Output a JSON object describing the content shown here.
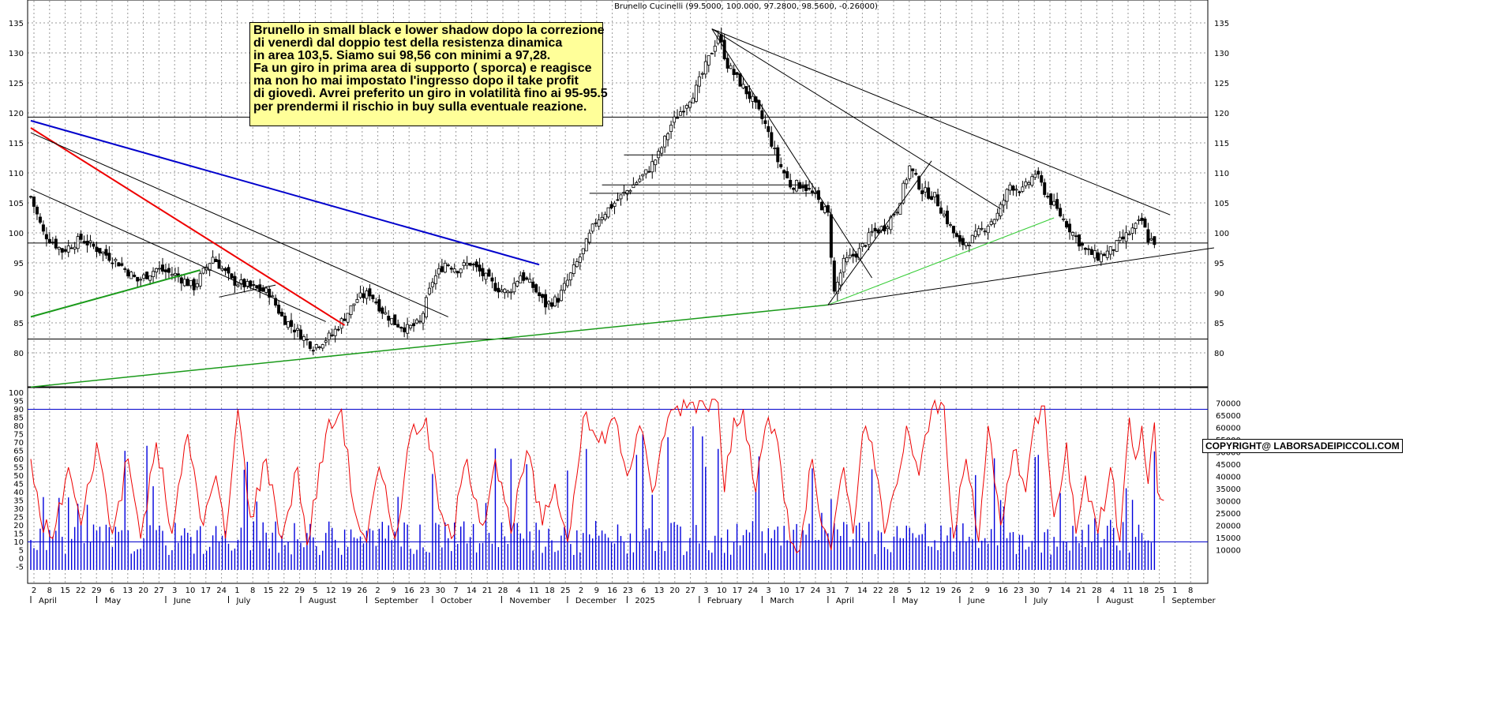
{
  "header": {
    "title": "Brunello Cucinelli (99.5000, 100.000, 97.2800, 98.5600, -0.26000)"
  },
  "note": {
    "lines": [
      "Brunello in small black e lower shadow dopo la correzione",
      "di venerdì dal doppio test della resistenza dinamica",
      "in area 103,5. Siamo sui 98,56 con minimi a 97,28.",
      "Fa un giro in prima area di supporto ( sporca) e reagisce",
      "ma non ho  mai impostato l'ingresso dopo il take profit",
      "di giovedì. Avrei preferito un giro in volatilità fino ai 95-95.5",
      "per prendermi il rischio in buy sulla eventuale reazione."
    ]
  },
  "copyright": "COPYRIGHT@ LABORSADEIPICCOLI.COM",
  "colors": {
    "grid": "#9a9a9a",
    "candle": "#000000",
    "blue_trend": "#0000cc",
    "red_trend": "#ee0000",
    "green_trend": "#1a9a1a",
    "light_green": "#33cc33",
    "oscillator": "#ee0000",
    "volume": "#0000dd",
    "level_line": "#0000cc",
    "note_bg": "#ffff99"
  },
  "chart_data": [
    {
      "type": "candlestick",
      "name": "Brunello Cucinelli",
      "ylim": [
        75,
        138
      ],
      "y_ticks": [
        80,
        85,
        90,
        95,
        100,
        105,
        110,
        115,
        120,
        125,
        130,
        135
      ],
      "y_tick_labels_right": [
        "80",
        "85",
        "90",
        "95",
        "100",
        "105",
        "110",
        "115",
        "120",
        "125",
        "130",
        "135"
      ],
      "x_range_bars": [
        0,
        374
      ],
      "day_ticks": [
        "2",
        "8",
        "15",
        "22",
        "29",
        "6",
        "13",
        "20",
        "27",
        "3",
        "10",
        "17",
        "24",
        "1",
        "8",
        "15",
        "22",
        "29",
        "5",
        "12",
        "19",
        "26",
        "2",
        "9",
        "16",
        "23",
        "30",
        "7",
        "14",
        "21",
        "28",
        "4",
        "11",
        "18",
        "25",
        "2",
        "9",
        "16",
        "23",
        "6",
        "13",
        "20",
        "27",
        "3",
        "10",
        "17",
        "24",
        "3",
        "10",
        "17",
        "24",
        "31",
        "7",
        "14",
        "22",
        "28",
        "5",
        "12",
        "19",
        "26",
        "2",
        "9",
        "16",
        "23",
        "30",
        "7",
        "14",
        "21",
        "28",
        "4",
        "11",
        "18",
        "25",
        "1",
        "8"
      ],
      "months": [
        {
          "label": "April",
          "bar": 0
        },
        {
          "label": "May",
          "bar": 21
        },
        {
          "label": "June",
          "bar": 43
        },
        {
          "label": "July",
          "bar": 63
        },
        {
          "label": "August",
          "bar": 86
        },
        {
          "label": "September",
          "bar": 107
        },
        {
          "label": "October",
          "bar": 128
        },
        {
          "label": "November",
          "bar": 150
        },
        {
          "label": "December",
          "bar": 171
        },
        {
          "label": "2025",
          "bar": 190
        },
        {
          "label": "February",
          "bar": 213
        },
        {
          "label": "March",
          "bar": 233
        },
        {
          "label": "April",
          "bar": 254
        },
        {
          "label": "May",
          "bar": 275
        },
        {
          "label": "June",
          "bar": 296
        },
        {
          "label": "July",
          "bar": 317
        },
        {
          "label": "August",
          "bar": 340
        },
        {
          "label": "September",
          "bar": 361
        }
      ],
      "close_anchors": [
        [
          0,
          106
        ],
        [
          4,
          100
        ],
        [
          10,
          97
        ],
        [
          16,
          99
        ],
        [
          22,
          97
        ],
        [
          28,
          95
        ],
        [
          34,
          92
        ],
        [
          40,
          94
        ],
        [
          46,
          93
        ],
        [
          52,
          91
        ],
        [
          58,
          96
        ],
        [
          64,
          92
        ],
        [
          70,
          91
        ],
        [
          76,
          90
        ],
        [
          80,
          86
        ],
        [
          84,
          84
        ],
        [
          90,
          81
        ],
        [
          96,
          83
        ],
        [
          100,
          86
        ],
        [
          104,
          89
        ],
        [
          108,
          90
        ],
        [
          112,
          87
        ],
        [
          116,
          85
        ],
        [
          120,
          84
        ],
        [
          124,
          85
        ],
        [
          128,
          92
        ],
        [
          132,
          95
        ],
        [
          136,
          94
        ],
        [
          140,
          95
        ],
        [
          144,
          93
        ],
        [
          148,
          91
        ],
        [
          152,
          90
        ],
        [
          156,
          93
        ],
        [
          160,
          91
        ],
        [
          164,
          88
        ],
        [
          168,
          89
        ],
        [
          172,
          93
        ],
        [
          176,
          97
        ],
        [
          180,
          102
        ],
        [
          184,
          104
        ],
        [
          188,
          106
        ],
        [
          192,
          108
        ],
        [
          196,
          110
        ],
        [
          200,
          113
        ],
        [
          204,
          118
        ],
        [
          208,
          121
        ],
        [
          212,
          124
        ],
        [
          216,
          129
        ],
        [
          219,
          133
        ],
        [
          222,
          128
        ],
        [
          226,
          125
        ],
        [
          230,
          122
        ],
        [
          234,
          118
        ],
        [
          238,
          112
        ],
        [
          242,
          108
        ],
        [
          246,
          108
        ],
        [
          250,
          106
        ],
        [
          254,
          103
        ],
        [
          256,
          90
        ],
        [
          259,
          95
        ],
        [
          264,
          97
        ],
        [
          268,
          100
        ],
        [
          272,
          101
        ],
        [
          276,
          104
        ],
        [
          280,
          111
        ],
        [
          284,
          107
        ],
        [
          288,
          106
        ],
        [
          292,
          102
        ],
        [
          296,
          98
        ],
        [
          300,
          99
        ],
        [
          304,
          101
        ],
        [
          308,
          103
        ],
        [
          312,
          108
        ],
        [
          316,
          107
        ],
        [
          320,
          110
        ],
        [
          324,
          106
        ],
        [
          328,
          103
        ],
        [
          332,
          100
        ],
        [
          336,
          97
        ],
        [
          340,
          96
        ],
        [
          344,
          97
        ],
        [
          348,
          99
        ],
        [
          352,
          101
        ],
        [
          354,
          102
        ],
        [
          356,
          99
        ],
        [
          358,
          98.56
        ]
      ],
      "horizontal_levels": [
        119.3,
        98.3,
        82.3
      ],
      "segments": [
        {
          "color": "blue_trend",
          "width": 2,
          "from": [
            0,
            118.7
          ],
          "to": [
            162,
            94.7
          ]
        },
        {
          "color": "red_trend",
          "width": 2,
          "from": [
            0,
            117.5
          ],
          "to": [
            100,
            84.6
          ]
        },
        {
          "color": "green_trend",
          "width": 2,
          "from": [
            0,
            86
          ],
          "to": [
            54,
            93.8
          ]
        },
        {
          "color": "green_trend",
          "width": 1.5,
          "from": [
            0,
            74.3
          ],
          "to": [
            254,
            88
          ]
        },
        {
          "color": "light_green",
          "width": 1,
          "from": [
            254,
            88
          ],
          "to": [
            326,
            102.5
          ]
        },
        {
          "color": "candle",
          "width": 1,
          "from": [
            0,
            107.3
          ],
          "to": [
            94,
            85.2
          ]
        },
        {
          "color": "candle",
          "width": 1,
          "from": [
            0,
            116.7
          ],
          "to": [
            133,
            86
          ]
        },
        {
          "color": "candle",
          "width": 1,
          "from": [
            217,
            134
          ],
          "to": [
            268,
            92.5
          ]
        },
        {
          "color": "candle",
          "width": 1,
          "from": [
            217,
            134
          ],
          "to": [
            309,
            104
          ]
        },
        {
          "color": "candle",
          "width": 1,
          "from": [
            217,
            134
          ],
          "to": [
            363,
            103
          ]
        },
        {
          "color": "candle",
          "width": 1,
          "from": [
            254,
            88
          ],
          "to": [
            377,
            97.5
          ]
        },
        {
          "color": "candle",
          "width": 1,
          "from": [
            254,
            88
          ],
          "to": [
            287,
            112
          ]
        },
        {
          "color": "candle",
          "width": 1,
          "from": [
            60,
            89.3
          ],
          "to": [
            78,
            91.3
          ]
        },
        {
          "color": "candle",
          "width": 1,
          "from": [
            178,
            106.6
          ],
          "to": [
            251,
            106.6
          ]
        },
        {
          "color": "candle",
          "width": 1,
          "from": [
            182,
            108
          ],
          "to": [
            248,
            108
          ]
        },
        {
          "color": "candle",
          "width": 1,
          "from": [
            189,
            113
          ],
          "to": [
            239,
            113
          ]
        }
      ]
    },
    {
      "type": "line+bar",
      "name": "oscillator and volume",
      "left_ylim": [
        -5,
        100
      ],
      "left_ticks": [
        -5,
        0,
        5,
        10,
        15,
        20,
        25,
        30,
        35,
        40,
        45,
        50,
        55,
        60,
        65,
        70,
        75,
        80,
        85,
        90,
        95,
        100
      ],
      "right_ylim": [
        0,
        70000
      ],
      "right_ticks": [
        10000,
        15000,
        20000,
        25000,
        30000,
        35000,
        40000,
        45000,
        50000,
        55000,
        60000,
        65000,
        70000
      ],
      "right_tick_labels": [
        "10000",
        "15000",
        "20000",
        "25000",
        "30000",
        "35000",
        "40000",
        "45000",
        "50000",
        "55000",
        "60000",
        "65000",
        "70000"
      ],
      "levels": [
        90,
        10
      ],
      "osc_anchors": [
        [
          0,
          60
        ],
        [
          3,
          25
        ],
        [
          7,
          12
        ],
        [
          12,
          55
        ],
        [
          16,
          20
        ],
        [
          21,
          70
        ],
        [
          26,
          15
        ],
        [
          31,
          60
        ],
        [
          35,
          12
        ],
        [
          40,
          70
        ],
        [
          45,
          15
        ],
        [
          50,
          75
        ],
        [
          55,
          20
        ],
        [
          59,
          50
        ],
        [
          62,
          12
        ],
        [
          66,
          90
        ],
        [
          70,
          25
        ],
        [
          75,
          60
        ],
        [
          80,
          12
        ],
        [
          85,
          55
        ],
        [
          88,
          8
        ],
        [
          94,
          75
        ],
        [
          99,
          90
        ],
        [
          103,
          30
        ],
        [
          107,
          10
        ],
        [
          111,
          55
        ],
        [
          116,
          12
        ],
        [
          121,
          75
        ],
        [
          126,
          85
        ],
        [
          130,
          30
        ],
        [
          134,
          12
        ],
        [
          139,
          60
        ],
        [
          144,
          20
        ],
        [
          148,
          60
        ],
        [
          153,
          15
        ],
        [
          158,
          65
        ],
        [
          163,
          20
        ],
        [
          167,
          45
        ],
        [
          171,
          10
        ],
        [
          176,
          85
        ],
        [
          181,
          70
        ],
        [
          186,
          85
        ],
        [
          190,
          50
        ],
        [
          194,
          80
        ],
        [
          198,
          40
        ],
        [
          203,
          85
        ],
        [
          206,
          92
        ],
        [
          210,
          94
        ],
        [
          214,
          95
        ],
        [
          219,
          94
        ],
        [
          221,
          40
        ],
        [
          224,
          85
        ],
        [
          227,
          90
        ],
        [
          231,
          40
        ],
        [
          235,
          85
        ],
        [
          238,
          70
        ],
        [
          242,
          10
        ],
        [
          245,
          5
        ],
        [
          249,
          60
        ],
        [
          252,
          20
        ],
        [
          255,
          5
        ],
        [
          259,
          55
        ],
        [
          262,
          15
        ],
        [
          265,
          75
        ],
        [
          268,
          70
        ],
        [
          272,
          15
        ],
        [
          276,
          45
        ],
        [
          279,
          80
        ],
        [
          283,
          50
        ],
        [
          287,
          90
        ],
        [
          291,
          92
        ],
        [
          294,
          12
        ],
        [
          298,
          60
        ],
        [
          302,
          10
        ],
        [
          305,
          80
        ],
        [
          309,
          20
        ],
        [
          313,
          65
        ],
        [
          317,
          40
        ],
        [
          320,
          85
        ],
        [
          323,
          92
        ],
        [
          326,
          25
        ],
        [
          330,
          70
        ],
        [
          333,
          15
        ],
        [
          336,
          50
        ],
        [
          340,
          15
        ],
        [
          344,
          55
        ],
        [
          347,
          10
        ],
        [
          350,
          85
        ],
        [
          352,
          60
        ],
        [
          354,
          80
        ],
        [
          356,
          45
        ],
        [
          358,
          82
        ],
        [
          359,
          40
        ],
        [
          361,
          35
        ]
      ]
    }
  ]
}
